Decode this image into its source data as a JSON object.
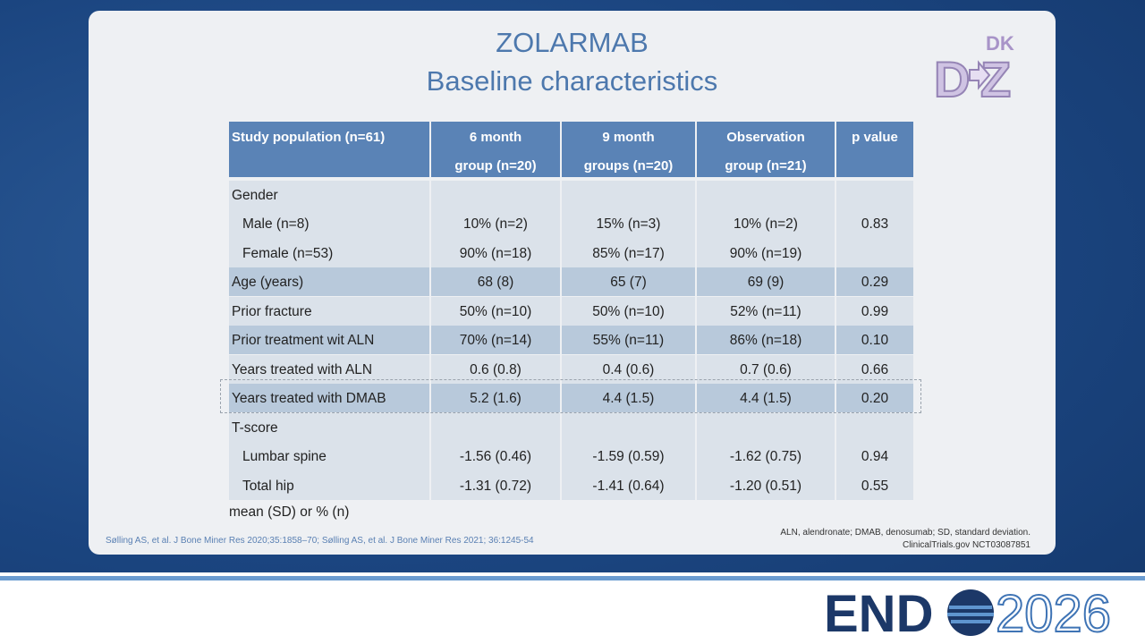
{
  "title": {
    "line1": "ZOLARMAB",
    "line2": "Baseline characteristics"
  },
  "logos": {
    "dz": {
      "small": "DK",
      "left": "D",
      "right": "Z"
    },
    "endo": {
      "word": "END",
      "year": "2026"
    }
  },
  "table": {
    "header": [
      [
        "Study population (n=61)"
      ],
      [
        "6 month",
        "group (n=20)"
      ],
      [
        "9 month",
        "groups (n=20)"
      ],
      [
        "Observation",
        "group (n=21)"
      ],
      [
        "p value"
      ]
    ],
    "groups": [
      {
        "heading": "Gender",
        "rows": [
          [
            "Male (n=8)",
            "10% (n=2)",
            "15% (n=3)",
            "10% (n=2)",
            "0.83"
          ],
          [
            "Female (n=53)",
            "90% (n=18)",
            "85% (n=17)",
            "90% (n=19)",
            null
          ]
        ]
      },
      {
        "rows": [
          [
            "Age (years)",
            "68 (8)",
            "65 (7)",
            "69 (9)",
            "0.29"
          ]
        ]
      },
      {
        "rows": [
          [
            "Prior fracture",
            "50% (n=10)",
            "50% (n=10)",
            "52% (n=11)",
            "0.99"
          ]
        ]
      },
      {
        "rows": [
          [
            "Prior treatment wit ALN",
            "70% (n=14)",
            "55% (n=11)",
            "86% (n=18)",
            "0.10"
          ]
        ]
      },
      {
        "rows": [
          [
            "Years treated with ALN",
            "0.6 (0.8)",
            "0.4 (0.6)",
            "0.7 (0.6)",
            "0.66"
          ]
        ]
      },
      {
        "rows": [
          [
            "Years treated with DMAB",
            "5.2 (1.6)",
            "4.4 (1.5)",
            "4.4 (1.5)",
            "0.20"
          ]
        ]
      },
      {
        "heading": "T-score",
        "rows": [
          [
            "Lumbar spine",
            "-1.56 (0.46)",
            "-1.59 (0.59)",
            "-1.62 (0.75)",
            "0.94"
          ],
          [
            "Total hip",
            "-1.31 (0.72)",
            "-1.41 (0.64)",
            "-1.20 (0.51)",
            "0.55"
          ]
        ]
      }
    ],
    "note": "mean (SD) or % (n)"
  },
  "footnotes": {
    "references": "Sølling AS, et al. J Bone Miner Res 2020;35:1858–70; Sølling AS, et al. J Bone Miner Res 2021; 36:1245-54",
    "abbreviations": "ALN, alendronate; DMAB, denosumab; SD, standard deviation.",
    "trial": "ClinicalTrials.gov NCT03087851"
  }
}
